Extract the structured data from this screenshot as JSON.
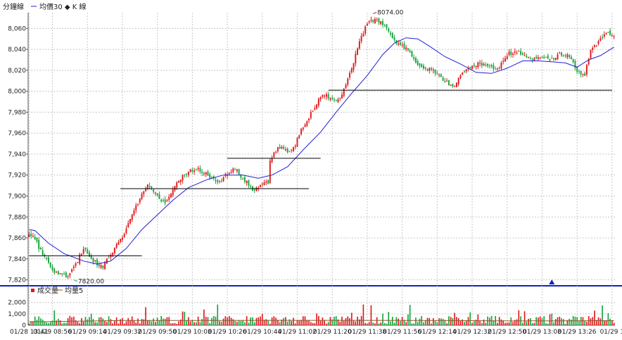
{
  "chart_data": {
    "type": "candlestick",
    "legend_main": {
      "title": "分鐘線",
      "ma_label": "均價30 ◆ K 線"
    },
    "legend_volume": {
      "title": "成交量",
      "ma_label": "均量5"
    },
    "ylim": [
      7815,
      8075
    ],
    "yticks": [
      7820,
      7840,
      7860,
      7880,
      7900,
      7920,
      7940,
      7960,
      7980,
      8000,
      8020,
      8040,
      8060
    ],
    "ytick_labels": [
      "7,820",
      "7,840",
      "7,860",
      "7,880",
      "7,900",
      "7,920",
      "7,940",
      "7,960",
      "7,980",
      "8,000",
      "8,020",
      "8,040",
      "8,060"
    ],
    "vol_ylim": [
      0,
      2600
    ],
    "vol_yticks": [
      0,
      1000,
      2000
    ],
    "vol_ytick_labels": [
      "0",
      "1,000",
      "2,000"
    ],
    "xticks": [
      {
        "i": 0,
        "label": "01/28 13:41"
      },
      {
        "i": 12,
        "label": "01/29 08:56"
      },
      {
        "i": 30,
        "label": "01/29 09:14"
      },
      {
        "i": 48,
        "label": "01/29 09:32"
      },
      {
        "i": 66,
        "label": "01/29 09:50"
      },
      {
        "i": 84,
        "label": "01/29 10:08"
      },
      {
        "i": 102,
        "label": "01/29 10:26"
      },
      {
        "i": 120,
        "label": "01/29 10:44"
      },
      {
        "i": 138,
        "label": "01/29 11:02"
      },
      {
        "i": 156,
        "label": "01/29 11:20"
      },
      {
        "i": 174,
        "label": "01/29 11:38"
      },
      {
        "i": 192,
        "label": "01/29 11:56"
      },
      {
        "i": 210,
        "label": "01/29 12:14"
      },
      {
        "i": 228,
        "label": "01/29 12:32"
      },
      {
        "i": 246,
        "label": "01/29 12:50"
      },
      {
        "i": 264,
        "label": "01/29 13:08"
      },
      {
        "i": 282,
        "label": "01/29 13:26"
      },
      {
        "i": 300,
        "label": "01/29 1"
      }
    ],
    "n_bars": 302,
    "price_path": [
      [
        0,
        7862
      ],
      [
        3,
        7860
      ],
      [
        5,
        7850
      ],
      [
        9,
        7840
      ],
      [
        13,
        7828
      ],
      [
        19,
        7823
      ],
      [
        24,
        7835
      ],
      [
        28,
        7850
      ],
      [
        33,
        7838
      ],
      [
        38,
        7833
      ],
      [
        44,
        7850
      ],
      [
        50,
        7868
      ],
      [
        57,
        7898
      ],
      [
        61,
        7912
      ],
      [
        68,
        7896
      ],
      [
        70,
        7893
      ],
      [
        75,
        7910
      ],
      [
        81,
        7922
      ],
      [
        86,
        7926
      ],
      [
        92,
        7920
      ],
      [
        97,
        7912
      ],
      [
        101,
        7919
      ],
      [
        106,
        7926
      ],
      [
        111,
        7915
      ],
      [
        116,
        7905
      ],
      [
        120,
        7913
      ],
      [
        123,
        7912
      ],
      [
        124,
        7933
      ],
      [
        128,
        7947
      ],
      [
        134,
        7941
      ],
      [
        137,
        7950
      ],
      [
        141,
        7966
      ],
      [
        146,
        7982
      ],
      [
        151,
        7997
      ],
      [
        156,
        7993
      ],
      [
        160,
        7992
      ],
      [
        162,
        8004
      ],
      [
        166,
        8020
      ],
      [
        170,
        8048
      ],
      [
        174,
        8064
      ],
      [
        177,
        8068
      ],
      [
        181,
        8066
      ],
      [
        184,
        8059
      ],
      [
        189,
        8046
      ],
      [
        195,
        8040
      ],
      [
        199,
        8027
      ],
      [
        205,
        8022
      ],
      [
        209,
        8018
      ],
      [
        215,
        8008
      ],
      [
        219,
        8006
      ],
      [
        224,
        8019
      ],
      [
        230,
        8026
      ],
      [
        235,
        8025
      ],
      [
        241,
        8021
      ],
      [
        247,
        8036
      ],
      [
        252,
        8038
      ],
      [
        258,
        8030
      ],
      [
        263,
        8033
      ],
      [
        268,
        8030
      ],
      [
        273,
        8036
      ],
      [
        278,
        8033
      ],
      [
        282,
        8020
      ],
      [
        286,
        8016
      ],
      [
        289,
        8040
      ],
      [
        293,
        8047
      ],
      [
        297,
        8057
      ],
      [
        301,
        8054
      ]
    ],
    "ma_path": [
      [
        0,
        7868
      ],
      [
        3,
        7867
      ],
      [
        10,
        7855
      ],
      [
        18,
        7845
      ],
      [
        28,
        7838
      ],
      [
        35,
        7835
      ],
      [
        42,
        7838
      ],
      [
        50,
        7850
      ],
      [
        58,
        7868
      ],
      [
        66,
        7882
      ],
      [
        74,
        7896
      ],
      [
        82,
        7908
      ],
      [
        92,
        7916
      ],
      [
        100,
        7920
      ],
      [
        110,
        7920
      ],
      [
        118,
        7917
      ],
      [
        125,
        7920
      ],
      [
        133,
        7928
      ],
      [
        141,
        7944
      ],
      [
        150,
        7961
      ],
      [
        158,
        7980
      ],
      [
        166,
        7998
      ],
      [
        174,
        8015
      ],
      [
        182,
        8035
      ],
      [
        188,
        8046
      ],
      [
        194,
        8051
      ],
      [
        200,
        8050
      ],
      [
        206,
        8043
      ],
      [
        214,
        8033
      ],
      [
        222,
        8026
      ],
      [
        230,
        8018
      ],
      [
        238,
        8017
      ],
      [
        246,
        8022
      ],
      [
        254,
        8029
      ],
      [
        262,
        8029
      ],
      [
        270,
        8028
      ],
      [
        276,
        8027
      ],
      [
        282,
        8023
      ],
      [
        288,
        8030
      ],
      [
        294,
        8034
      ],
      [
        301,
        8042
      ]
    ],
    "vol_ma_path": [
      [
        0,
        300
      ],
      [
        50,
        420
      ],
      [
        100,
        420
      ],
      [
        150,
        430
      ],
      [
        200,
        420
      ],
      [
        250,
        380
      ],
      [
        301,
        400
      ]
    ],
    "support_lines": [
      {
        "x0": 0,
        "x1": 58,
        "y": 7843
      },
      {
        "x0": 47,
        "x1": 144,
        "y": 7907
      },
      {
        "x0": 102,
        "x1": 150,
        "y": 7936
      },
      {
        "x0": 154,
        "x1": 300,
        "y": 8001
      }
    ],
    "high_marker": {
      "i": 177,
      "value": 8074,
      "label": "8074.00"
    },
    "low_marker": {
      "i": 23,
      "value": 7820,
      "label": "7820.00"
    },
    "triangle_marker_i": 269,
    "colors": {
      "up": "#e0191e",
      "down": "#17a33a",
      "ma": "#2020d8",
      "vol_ma": "#8b5a2b",
      "separator": "#1020c0",
      "grid": "#c8c8c8",
      "marker": "#e0191e",
      "line": "#000000"
    }
  }
}
